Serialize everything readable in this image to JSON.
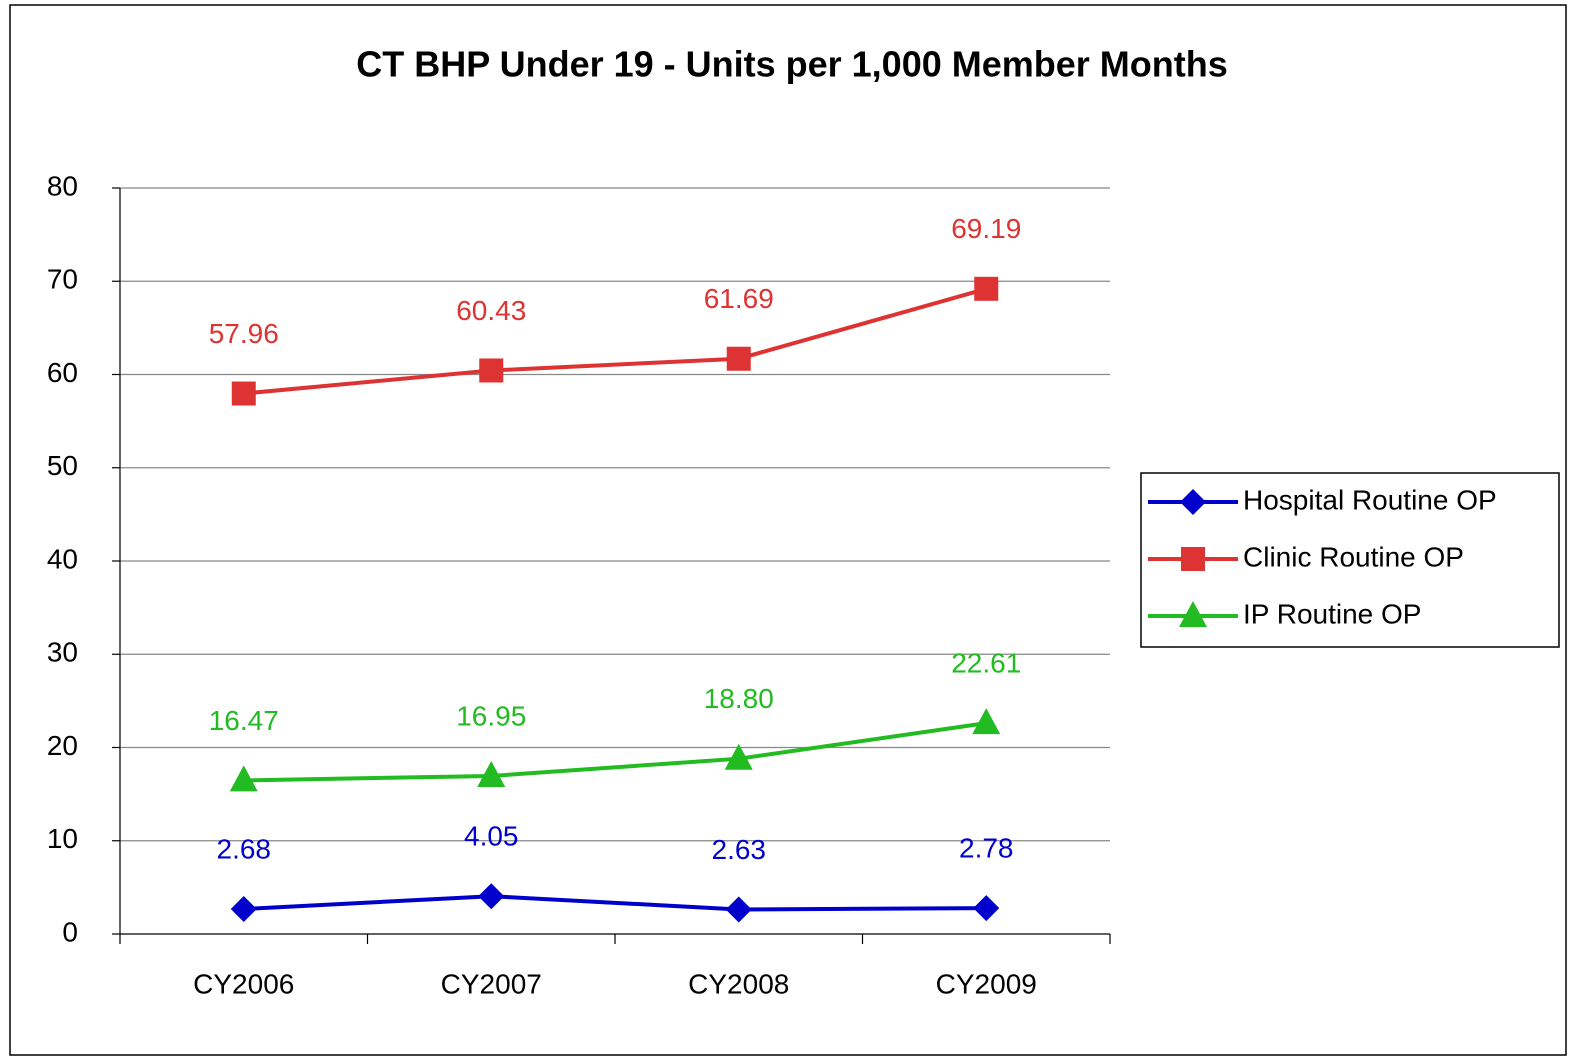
{
  "chart_data": {
    "type": "line",
    "title": "CT BHP Under 19 - Units per 1,000 Member Months",
    "categories": [
      "CY2006",
      "CY2007",
      "CY2008",
      "CY2009"
    ],
    "series": [
      {
        "name": "Hospital Routine OP",
        "color": "#0000cc",
        "marker": "diamond",
        "values": [
          2.68,
          4.05,
          2.63,
          2.78
        ],
        "value_labels": [
          "2.68",
          "4.05",
          "2.63",
          "2.78"
        ]
      },
      {
        "name": "Clinic Routine OP",
        "color": "#dd3333",
        "marker": "square",
        "values": [
          57.96,
          60.43,
          61.69,
          69.19
        ],
        "value_labels": [
          "57.96",
          "60.43",
          "61.69",
          "69.19"
        ]
      },
      {
        "name": "IP Routine OP",
        "color": "#22bb22",
        "marker": "triangle",
        "values": [
          16.47,
          16.95,
          18.8,
          22.61
        ],
        "value_labels": [
          "16.47",
          "16.95",
          "18.80",
          "22.61"
        ]
      }
    ],
    "ylim": [
      0,
      80
    ],
    "yticks": [
      0,
      10,
      20,
      30,
      40,
      50,
      60,
      70,
      80
    ],
    "grid": true,
    "legend": "right"
  }
}
